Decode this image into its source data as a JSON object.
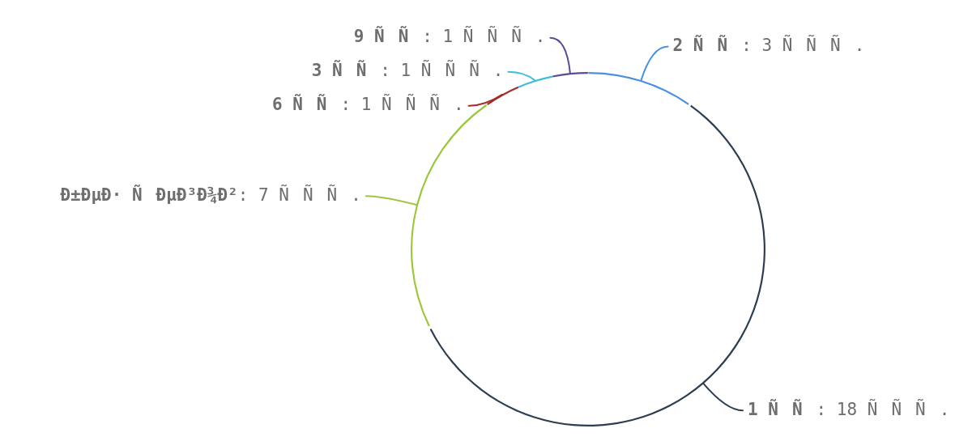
{
  "chart_data": {
    "type": "donut",
    "categories": [
      "2 ÑÑ",
      "1 ÑÑ",
      "Ð±ÐµÐ· ÑÐµÐ³Ð¾Ð²",
      "6 ÑÑ",
      "3 ÑÑ",
      "9 ÑÑ"
    ],
    "values": [
      3,
      18,
      7,
      1,
      1,
      1
    ],
    "value_labels": [
      ": 3 ÑÑÑ.",
      ": 18 ÑÑÑ.",
      ": 7 ÑÑÑ.",
      ": 1 ÑÑÑ.",
      ": 1 ÑÑÑ.",
      ": 1 ÑÑÑ."
    ],
    "colors": [
      "#4a90e2",
      "#2c3e50",
      "#9ac73c",
      "#a52a2a",
      "#3fbcdc",
      "#5e4a8f"
    ]
  }
}
